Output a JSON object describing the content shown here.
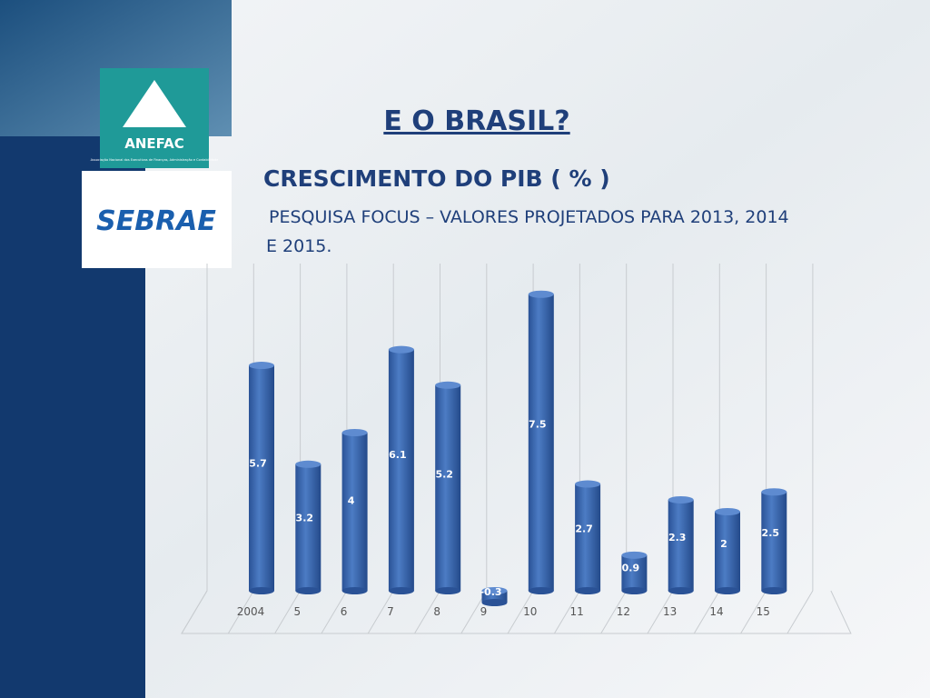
{
  "header": {
    "title": "E O BRASIL?",
    "anefac": "ANEFAC",
    "anefac_caption": "Associação Nacional dos Executivos de Finanças, Administração e Contabilidade",
    "sebrae": "SEBRAE"
  },
  "chart_data": {
    "type": "bar",
    "title": "CRESCIMENTO DO PIB ( % )",
    "subtitle": "PESQUISA FOCUS – VALORES PROJETADOS PARA 2013, 2014 E 2015.",
    "categories": [
      "2004",
      "5",
      "6",
      "7",
      "8",
      "9",
      "10",
      "11",
      "12",
      "13",
      "14",
      "15"
    ],
    "values": [
      5.7,
      3.2,
      4,
      6.1,
      5.2,
      -0.3,
      7.5,
      2.7,
      0.9,
      2.3,
      2,
      2.5
    ],
    "color": "#3f6fb6"
  }
}
